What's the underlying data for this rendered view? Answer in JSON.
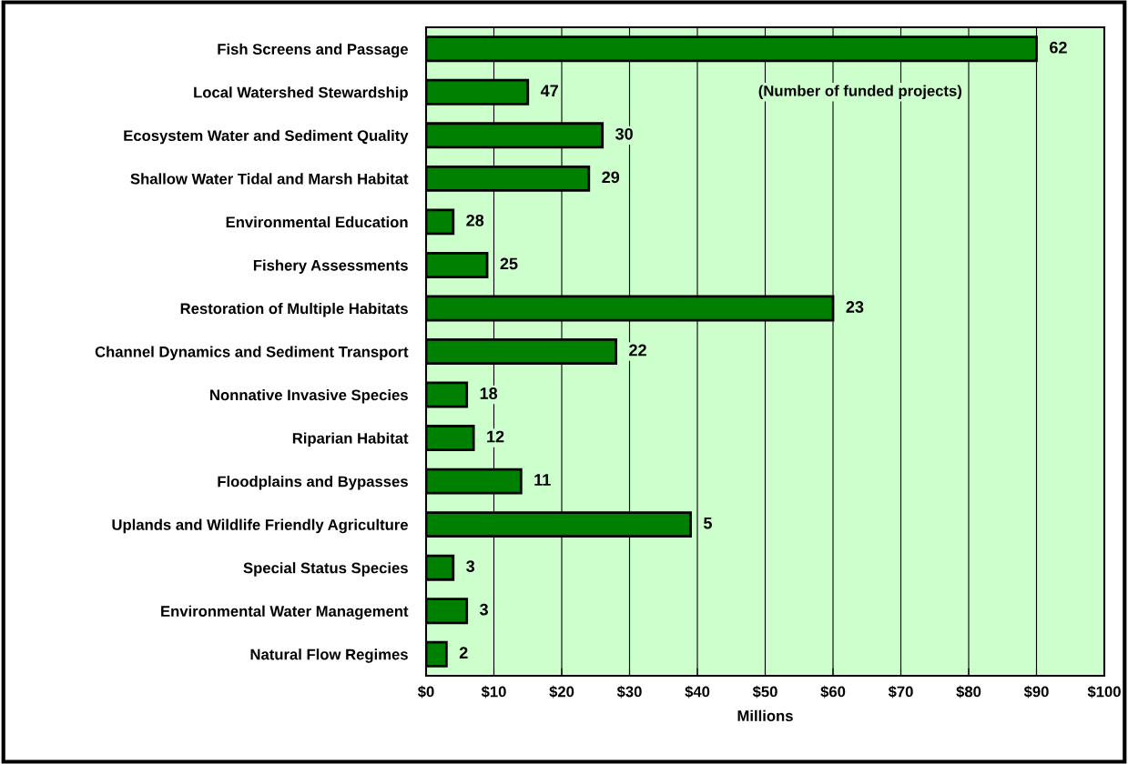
{
  "chart_data": {
    "type": "bar",
    "orientation": "horizontal",
    "xlabel": "Millions",
    "categories": [
      "Fish Screens and Passage",
      "Local Watershed Stewardship",
      "Ecosystem Water and Sediment Quality",
      "Shallow Water Tidal and Marsh Habitat",
      "Environmental Education",
      "Fishery Assessments",
      "Restoration of Multiple Habitats",
      "Channel Dynamics and Sediment Transport",
      "Nonnative Invasive Species",
      "Riparian Habitat",
      "Floodplains and Bypasses",
      "Uplands and Wildlife Friendly Agriculture",
      "Special Status Species",
      "Environmental Water Management",
      "Natural Flow Regimes"
    ],
    "values": [
      90,
      15,
      26,
      24,
      4,
      9,
      60,
      28,
      6,
      7,
      14,
      39,
      4,
      6,
      3
    ],
    "color": "#008000",
    "xlim": [
      0,
      100
    ],
    "xticks": [
      {
        "value": 0,
        "label": "$0"
      },
      {
        "value": 10,
        "label": "$10"
      },
      {
        "value": 20,
        "label": "$20"
      },
      {
        "value": 30,
        "label": "$30"
      },
      {
        "value": 40,
        "label": "$40"
      },
      {
        "value": 50,
        "label": "$50"
      },
      {
        "value": 60,
        "label": "$60"
      },
      {
        "value": 70,
        "label": "$70"
      },
      {
        "value": 80,
        "label": "$80"
      },
      {
        "value": 90,
        "label": "$90"
      },
      {
        "value": 100,
        "label": "$100"
      }
    ],
    "grid": "x",
    "annotations": [
      "62",
      "47",
      "30",
      "29",
      "28",
      "25",
      "23",
      "22",
      "18",
      "12",
      "11",
      "5",
      "3",
      "3",
      "2",
      "(Number of funded projects)"
    ]
  }
}
